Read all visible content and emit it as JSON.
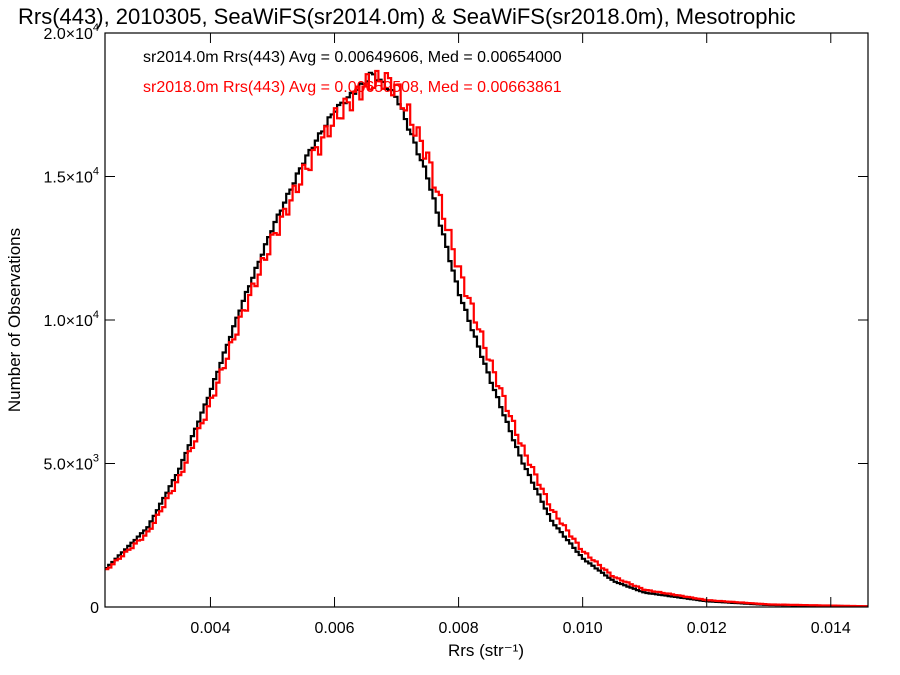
{
  "chart_data": {
    "type": "histogram",
    "title": "Rrs(443), 2010305, SeaWiFS(sr2014.0m) & SeaWiFS(sr2018.0m), Mesotrophic",
    "xlabel": "Rrs (str⁻¹)",
    "ylabel": "Number of Observations",
    "xlim": [
      0.0023,
      0.0146
    ],
    "ylim": [
      0,
      20000
    ],
    "x_ticks": [
      {
        "value": 0.004,
        "label": "0.004"
      },
      {
        "value": 0.006,
        "label": "0.006"
      },
      {
        "value": 0.008,
        "label": "0.008"
      },
      {
        "value": 0.01,
        "label": "0.010"
      },
      {
        "value": 0.012,
        "label": "0.012"
      },
      {
        "value": 0.014,
        "label": "0.014"
      }
    ],
    "y_ticks": [
      {
        "value": 0,
        "mant": "0",
        "exp": ""
      },
      {
        "value": 5000,
        "mant": "5.0×10",
        "exp": "3"
      },
      {
        "value": 10000,
        "mant": "1.0×10",
        "exp": "4"
      },
      {
        "value": 15000,
        "mant": "1.5×10",
        "exp": "4"
      },
      {
        "value": 20000,
        "mant": "2.0×10",
        "exp": "4"
      }
    ],
    "grid": false,
    "series": [
      {
        "name": "sr2014.0m",
        "color": "#000000",
        "stats_text": "sr2014.0m Rrs(443) Avg = 0.00649606, Med = 0.00654000",
        "points": [
          [
            0.0023,
            1300
          ],
          [
            0.003,
            2800
          ],
          [
            0.0035,
            4800
          ],
          [
            0.004,
            7500
          ],
          [
            0.0045,
            10500
          ],
          [
            0.005,
            13200
          ],
          [
            0.0055,
            15500
          ],
          [
            0.006,
            17300
          ],
          [
            0.0065,
            18300
          ],
          [
            0.0066,
            18600
          ],
          [
            0.007,
            17800
          ],
          [
            0.0075,
            15000
          ],
          [
            0.008,
            11000
          ],
          [
            0.0085,
            8000
          ],
          [
            0.009,
            5200
          ],
          [
            0.0095,
            3000
          ],
          [
            0.01,
            1700
          ],
          [
            0.0105,
            900
          ],
          [
            0.011,
            500
          ],
          [
            0.012,
            200
          ],
          [
            0.013,
            70
          ],
          [
            0.0146,
            20
          ]
        ]
      },
      {
        "name": "sr2018.0m",
        "color": "#ff0000",
        "stats_text": "sr2018.0m Rrs(443) Avg = 0.00659508, Med = 0.00663861",
        "points": [
          [
            0.0023,
            1250
          ],
          [
            0.003,
            2600
          ],
          [
            0.0035,
            4500
          ],
          [
            0.004,
            7100
          ],
          [
            0.0045,
            10100
          ],
          [
            0.005,
            12800
          ],
          [
            0.0055,
            15100
          ],
          [
            0.006,
            17000
          ],
          [
            0.0065,
            18200
          ],
          [
            0.0068,
            18400
          ],
          [
            0.007,
            18100
          ],
          [
            0.0075,
            15700
          ],
          [
            0.008,
            11800
          ],
          [
            0.0085,
            8600
          ],
          [
            0.009,
            5700
          ],
          [
            0.0095,
            3400
          ],
          [
            0.01,
            1950
          ],
          [
            0.0105,
            1050
          ],
          [
            0.011,
            600
          ],
          [
            0.012,
            240
          ],
          [
            0.013,
            90
          ],
          [
            0.0146,
            25
          ]
        ]
      }
    ]
  }
}
